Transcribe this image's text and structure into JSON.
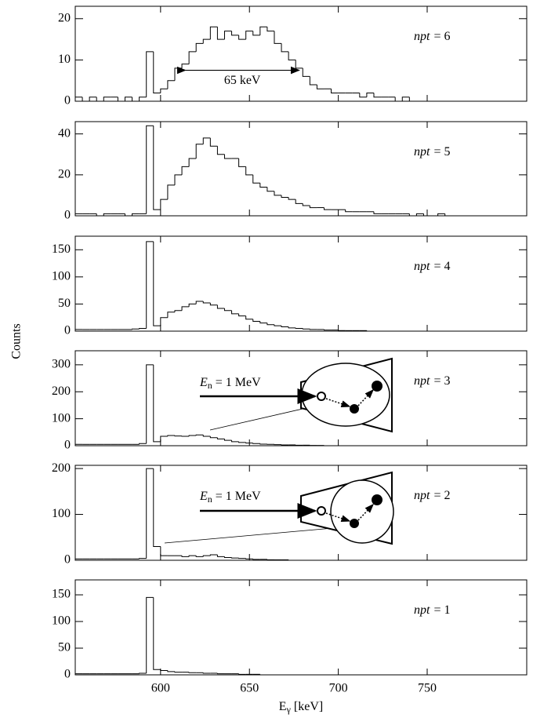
{
  "ylabel": "Counts",
  "xlabel": {
    "symbol": "E",
    "subscript": "γ",
    "unit": "[keV]"
  },
  "chart_data": [
    {
      "type": "histogram",
      "label": {
        "italic": "npt",
        "text": "= 6"
      },
      "color": "#000000",
      "xlim": [
        552,
        806
      ],
      "xticks": [
        600,
        650,
        700,
        750
      ],
      "ylim": [
        0,
        23
      ],
      "yticks": [
        0,
        10,
        20
      ],
      "bins": [
        552,
        556,
        560,
        564,
        568,
        572,
        576,
        580,
        584,
        588,
        592,
        596,
        600,
        604,
        608,
        612,
        616,
        620,
        624,
        628,
        632,
        636,
        640,
        644,
        648,
        652,
        656,
        660,
        664,
        668,
        672,
        676,
        680,
        684,
        688,
        692,
        696,
        700,
        704,
        708,
        712,
        716,
        720,
        724,
        728,
        732,
        736,
        740,
        744,
        748,
        752,
        756,
        760,
        764,
        768,
        772,
        776,
        780,
        784,
        788,
        792,
        796,
        800,
        804
      ],
      "values": [
        1,
        0,
        1,
        0,
        1,
        1,
        0,
        1,
        0,
        1,
        12,
        2,
        3,
        5,
        8,
        9,
        12,
        14,
        15,
        18,
        15,
        17,
        16,
        15,
        17,
        16,
        18,
        17,
        14,
        12,
        10,
        8,
        6,
        4,
        3,
        3,
        2,
        2,
        2,
        2,
        1,
        2,
        1,
        1,
        1,
        0,
        1,
        0,
        0,
        0,
        0,
        0,
        0,
        0,
        0,
        0,
        0,
        0,
        0,
        0,
        0,
        0,
        0
      ],
      "annotation": {
        "text": "65 keV",
        "x": [
          614,
          678
        ],
        "y": 7.5
      }
    },
    {
      "type": "histogram",
      "label": {
        "italic": "npt",
        "text": "= 5"
      },
      "color": "#000000",
      "xlim": [
        552,
        806
      ],
      "xticks": [
        600,
        650,
        700,
        750
      ],
      "ylim": [
        0,
        46
      ],
      "yticks": [
        0,
        20,
        40
      ],
      "bins": [
        552,
        556,
        560,
        564,
        568,
        572,
        576,
        580,
        584,
        588,
        592,
        596,
        600,
        604,
        608,
        612,
        616,
        620,
        624,
        628,
        632,
        636,
        640,
        644,
        648,
        652,
        656,
        660,
        664,
        668,
        672,
        676,
        680,
        684,
        688,
        692,
        696,
        700,
        704,
        708,
        712,
        716,
        720,
        724,
        728,
        732,
        736,
        740,
        744,
        748,
        752,
        756,
        760,
        764,
        768,
        772,
        776,
        780,
        784,
        788,
        792,
        796,
        800,
        804
      ],
      "values": [
        1,
        1,
        1,
        0,
        1,
        1,
        1,
        0,
        1,
        1,
        44,
        3,
        8,
        15,
        20,
        24,
        28,
        35,
        38,
        34,
        30,
        28,
        28,
        24,
        20,
        16,
        14,
        12,
        10,
        9,
        8,
        6,
        5,
        4,
        4,
        3,
        3,
        3,
        2,
        2,
        2,
        2,
        1,
        1,
        1,
        1,
        1,
        0,
        1,
        0,
        0,
        1,
        0,
        0,
        0,
        0,
        0,
        0,
        0,
        0,
        0,
        0,
        0
      ]
    },
    {
      "type": "histogram",
      "label": {
        "italic": "npt",
        "text": "= 4"
      },
      "color": "#000000",
      "xlim": [
        552,
        806
      ],
      "xticks": [
        600,
        650,
        700,
        750
      ],
      "ylim": [
        0,
        175
      ],
      "yticks": [
        0,
        50,
        100,
        150
      ],
      "bins": [
        552,
        556,
        560,
        564,
        568,
        572,
        576,
        580,
        584,
        588,
        592,
        596,
        600,
        604,
        608,
        612,
        616,
        620,
        624,
        628,
        632,
        636,
        640,
        644,
        648,
        652,
        656,
        660,
        664,
        668,
        672,
        676,
        680,
        684,
        688,
        692,
        696,
        700,
        704,
        708,
        712,
        716,
        720,
        724,
        728,
        732,
        736,
        740,
        744,
        748,
        752,
        756,
        760,
        764,
        768,
        772,
        776,
        780,
        784,
        788,
        792,
        796,
        800,
        804
      ],
      "values": [
        3,
        3,
        3,
        3,
        3,
        3,
        3,
        3,
        4,
        5,
        165,
        10,
        25,
        35,
        38,
        45,
        50,
        55,
        52,
        48,
        42,
        38,
        32,
        28,
        22,
        18,
        15,
        12,
        10,
        8,
        6,
        5,
        4,
        3,
        3,
        2,
        2,
        1,
        1,
        1,
        1,
        0,
        0,
        0,
        0,
        0,
        0,
        0,
        0,
        0,
        0,
        0,
        0,
        0,
        0,
        0,
        0,
        0,
        0,
        0,
        0,
        0,
        0
      ]
    },
    {
      "type": "histogram",
      "label": {
        "italic": "npt",
        "text": "= 3"
      },
      "color": "#000000",
      "xlim": [
        552,
        806
      ],
      "xticks": [
        600,
        650,
        700,
        750
      ],
      "ylim": [
        0,
        352
      ],
      "yticks": [
        0,
        100,
        200,
        300
      ],
      "bins": [
        552,
        556,
        560,
        564,
        568,
        572,
        576,
        580,
        584,
        588,
        592,
        596,
        600,
        604,
        608,
        612,
        616,
        620,
        624,
        628,
        632,
        636,
        640,
        644,
        648,
        652,
        656,
        660,
        664,
        668,
        672,
        676,
        680,
        684,
        688,
        692,
        696,
        700,
        704,
        708,
        712,
        716,
        720,
        724,
        728,
        732,
        736,
        740,
        744,
        748,
        752,
        756,
        760,
        764,
        768,
        772,
        776,
        780,
        784,
        788,
        792,
        796,
        800,
        804
      ],
      "values": [
        5,
        5,
        5,
        5,
        5,
        5,
        5,
        5,
        5,
        8,
        300,
        15,
        35,
        38,
        36,
        35,
        38,
        40,
        35,
        30,
        25,
        20,
        15,
        12,
        10,
        8,
        6,
        5,
        4,
        3,
        3,
        2,
        2,
        1,
        1,
        0,
        0,
        0,
        0,
        0,
        0,
        0,
        0,
        0,
        0,
        0,
        0,
        0,
        0,
        0,
        0,
        0,
        0,
        0,
        0,
        0,
        0,
        0,
        0,
        0,
        0,
        0,
        0
      ],
      "annotation": {
        "symbol": "E",
        "subscript": "n",
        "text": "= 1 MeV"
      }
    },
    {
      "type": "histogram",
      "label": {
        "italic": "npt",
        "text": "= 2"
      },
      "color": "#000000",
      "xlim": [
        552,
        806
      ],
      "xticks": [
        600,
        650,
        700,
        750
      ],
      "ylim": [
        0,
        207
      ],
      "yticks": [
        0,
        100,
        200
      ],
      "bins": [
        552,
        556,
        560,
        564,
        568,
        572,
        576,
        580,
        584,
        588,
        592,
        596,
        600,
        604,
        608,
        612,
        616,
        620,
        624,
        628,
        632,
        636,
        640,
        644,
        648,
        652,
        656,
        660,
        664,
        668,
        672,
        676,
        680,
        684,
        688,
        692,
        696,
        700,
        704,
        708,
        712,
        716,
        720,
        724,
        728,
        732,
        736,
        740,
        744,
        748,
        752,
        756,
        760,
        764,
        768,
        772,
        776,
        780,
        784,
        788,
        792,
        796,
        800,
        804
      ],
      "values": [
        3,
        3,
        3,
        3,
        3,
        3,
        3,
        3,
        3,
        4,
        200,
        30,
        10,
        10,
        10,
        8,
        10,
        8,
        10,
        12,
        8,
        6,
        5,
        4,
        3,
        2,
        2,
        1,
        1,
        1,
        0,
        0,
        0,
        0,
        0,
        0,
        0,
        0,
        0,
        0,
        0,
        0,
        0,
        0,
        0,
        0,
        0,
        0,
        0,
        0,
        0,
        0,
        0,
        0,
        0,
        0,
        0,
        0,
        0,
        0,
        0,
        0,
        0
      ],
      "annotation": {
        "symbol": "E",
        "subscript": "n",
        "text": "= 1 MeV"
      }
    },
    {
      "type": "histogram",
      "label": {
        "italic": "npt",
        "text": "= 1"
      },
      "color": "#000000",
      "xlim": [
        552,
        806
      ],
      "xticks": [
        600,
        650,
        700,
        750
      ],
      "ylim": [
        0,
        178
      ],
      "yticks": [
        0,
        50,
        100,
        150
      ],
      "bins": [
        552,
        556,
        560,
        564,
        568,
        572,
        576,
        580,
        584,
        588,
        592,
        596,
        600,
        604,
        608,
        612,
        616,
        620,
        624,
        628,
        632,
        636,
        640,
        644,
        648,
        652,
        656,
        660,
        664,
        668,
        672,
        676,
        680,
        684,
        688,
        692,
        696,
        700,
        704,
        708,
        712,
        716,
        720,
        724,
        728,
        732,
        736,
        740,
        744,
        748,
        752,
        756,
        760,
        764,
        768,
        772,
        776,
        780,
        784,
        788,
        792,
        796,
        800,
        804
      ],
      "values": [
        2,
        2,
        2,
        2,
        2,
        2,
        2,
        2,
        2,
        3,
        145,
        10,
        8,
        6,
        5,
        5,
        4,
        4,
        3,
        3,
        2,
        2,
        2,
        1,
        1,
        1,
        0,
        0,
        0,
        0,
        0,
        0,
        0,
        0,
        0,
        0,
        0,
        0,
        0,
        0,
        0,
        0,
        0,
        0,
        0,
        0,
        0,
        0,
        0,
        0,
        0,
        0,
        0,
        0,
        0,
        0,
        0,
        0,
        0,
        0,
        0,
        0,
        0
      ]
    }
  ]
}
